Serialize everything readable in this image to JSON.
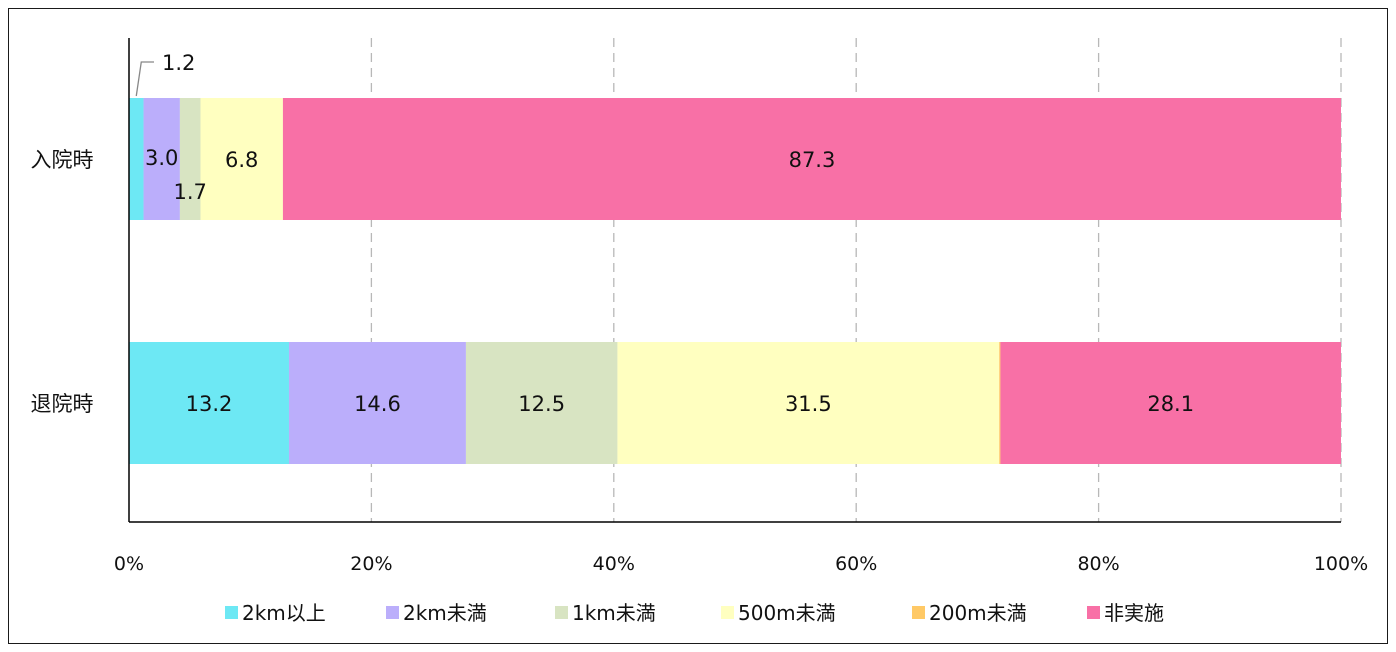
{
  "chart_data": {
    "type": "bar",
    "orientation": "horizontal",
    "stacked": "percent",
    "categories": [
      "入院時",
      "退院時"
    ],
    "series": [
      {
        "name": "2km以上",
        "color": "#6DE8F4",
        "values": [
          1.2,
          13.2
        ],
        "labels": [
          "1.2",
          "13.2"
        ]
      },
      {
        "name": "2km未満",
        "color": "#BBAEFB",
        "values": [
          3.0,
          14.6
        ],
        "labels": [
          "3.0",
          "14.6"
        ]
      },
      {
        "name": "1km未満",
        "color": "#D8E4C2",
        "values": [
          1.7,
          12.5
        ],
        "labels": [
          "1.7",
          "12.5"
        ]
      },
      {
        "name": "500m未満",
        "color": "#FFFFC0",
        "values": [
          6.8,
          31.5
        ],
        "labels": [
          "6.8",
          "31.5"
        ]
      },
      {
        "name": "200m未満",
        "color": "#FFC966",
        "values": [
          0.0,
          0.1
        ],
        "labels": [
          "",
          ""
        ]
      },
      {
        "name": "非実施",
        "color": "#F870A6",
        "values": [
          87.3,
          28.1
        ],
        "labels": [
          "87.3",
          "28.1"
        ]
      }
    ],
    "xlim": [
      0,
      100
    ],
    "xticks": [
      "0%",
      "20%",
      "40%",
      "60%",
      "80%",
      "100%"
    ],
    "grid": "vertical dashed",
    "legend_position": "bottom",
    "title": "",
    "xlabel": "",
    "ylabel": ""
  }
}
